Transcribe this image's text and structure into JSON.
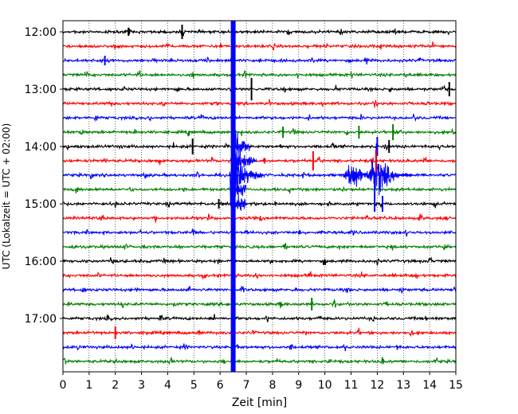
{
  "chart_data": {
    "type": "line",
    "title": "",
    "xlabel": "Zeit  [min]",
    "ylabel": "UTC (Lokalzeit = UTC + 02:00)",
    "xlim": [
      0,
      15
    ],
    "x_ticks": [
      "0",
      "1",
      "2",
      "3",
      "4",
      "5",
      "6",
      "7",
      "8",
      "9",
      "10",
      "11",
      "12",
      "13",
      "14",
      "15"
    ],
    "y_tick_labels": [
      "12:00",
      "13:00",
      "14:00",
      "15:00",
      "16:00",
      "17:00"
    ],
    "trace_interval_min": 15,
    "trace_start": "12:00",
    "trace_count": 24,
    "trace_colors": [
      "#000000",
      "#ff0000",
      "#0000ff",
      "#008000"
    ],
    "grid": {
      "vertical_dotted": true
    },
    "events": [
      {
        "name": "large earthquake",
        "x_min": 6.5,
        "traces": "all",
        "color": "#0000ff"
      },
      {
        "name": "coda 14:30",
        "x_min": 6.6,
        "trace_index": 10
      },
      {
        "name": "coda 14:30b",
        "x_min": 12.0,
        "trace_index": 10
      },
      {
        "name": "spikes 13:45",
        "x_min": 11.3,
        "trace_index": 7
      },
      {
        "name": "spikes 14:00",
        "x_min": 11.9,
        "trace_index": 8
      }
    ]
  }
}
